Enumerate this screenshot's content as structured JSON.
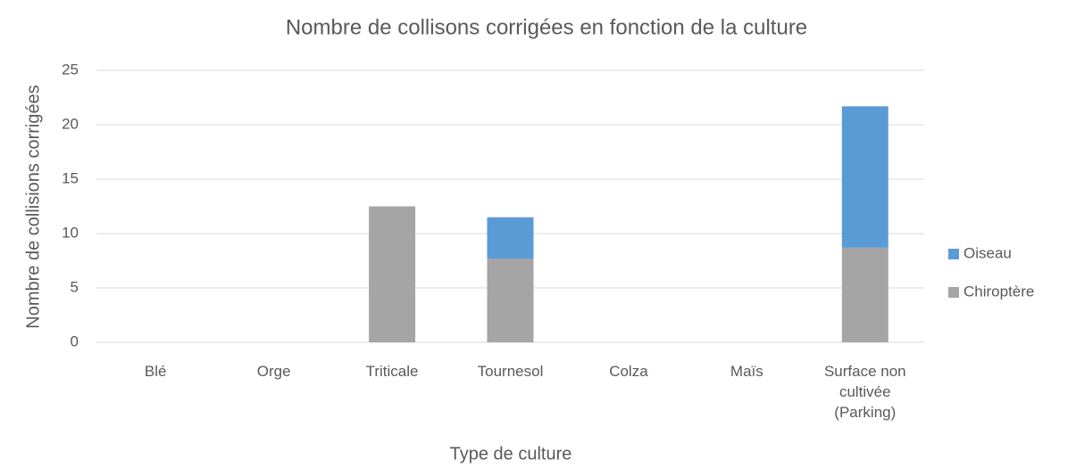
{
  "chart_data": {
    "type": "stacked_bar",
    "title": "Nombre de collisons corrigées en fonction de la culture",
    "x_label": "Type de culture",
    "y_label": "Nombre de collisions corrigées",
    "categories": [
      "Blé",
      "Orge",
      "Triticale",
      "Tournesol",
      "Colza",
      "Maïs",
      "Surface non cultivée (Parking)"
    ],
    "series": [
      {
        "name": "Chiroptère",
        "color": "#a5a5a5",
        "values": [
          0,
          0,
          12.5,
          7.7,
          0,
          0,
          8.7
        ]
      },
      {
        "name": "Oiseau",
        "color": "#5b9bd5",
        "values": [
          0,
          0,
          0,
          3.8,
          0,
          0,
          13.0
        ]
      }
    ],
    "ylim": [
      0,
      25
    ],
    "yticks": [
      0,
      5,
      10,
      15,
      20,
      25
    ],
    "grid": true,
    "legend": "right"
  }
}
